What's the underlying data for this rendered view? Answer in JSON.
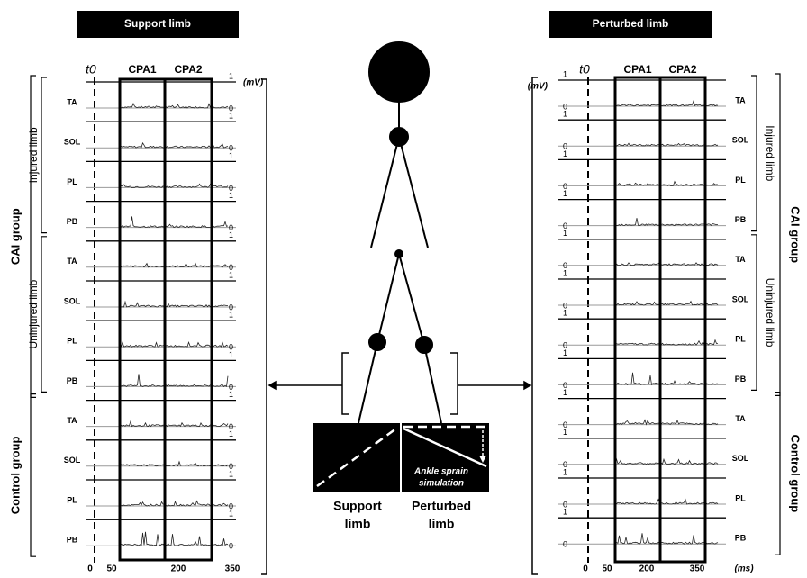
{
  "panels": [
    {
      "title": "Support limb",
      "t0": "t0",
      "windows": [
        "CPA1",
        "CPA2"
      ],
      "unit": "(mV)",
      "one": "1",
      "zero": "0",
      "groups": [
        {
          "label": "CAI group",
          "subgroups": [
            {
              "label": "Injured limb",
              "muscles": [
                "TA",
                "SOL",
                "PL",
                "PB"
              ]
            },
            {
              "label": "Uninjured limb",
              "muscles": [
                "TA",
                "SOL",
                "PL",
                "PB"
              ]
            }
          ]
        },
        {
          "label": "Control group",
          "subgroups": [
            {
              "muscles": [
                "TA",
                "SOL",
                "PL",
                "PB"
              ]
            }
          ]
        }
      ],
      "time_labels": [
        "0",
        "50",
        "200",
        "350"
      ]
    },
    {
      "title": "Perturbed limb",
      "t0": "t0",
      "windows": [
        "CPA1",
        "CPA2"
      ],
      "unit": "(mV)",
      "one": "1",
      "zero": "0",
      "groups": [
        {
          "label": "CAI group",
          "subgroups": [
            {
              "label": "Injured limb",
              "muscles": [
                "TA",
                "SOL",
                "PL",
                "PB"
              ]
            },
            {
              "label": "Uninjured limb",
              "muscles": [
                "TA",
                "SOL",
                "PL",
                "PB"
              ]
            }
          ]
        },
        {
          "label": "Control group",
          "subgroups": [
            {
              "muscles": [
                "TA",
                "SOL",
                "PL",
                "PB"
              ]
            }
          ]
        }
      ],
      "time_labels": [
        "0",
        "50",
        "200",
        "350"
      ],
      "time_unit": "(ms)"
    }
  ],
  "figure": {
    "support_label": [
      "Support",
      "limb"
    ],
    "perturbed_label": [
      "Perturbed",
      "limb"
    ],
    "simulation": [
      "Ankle sprain",
      "simulation"
    ]
  }
}
